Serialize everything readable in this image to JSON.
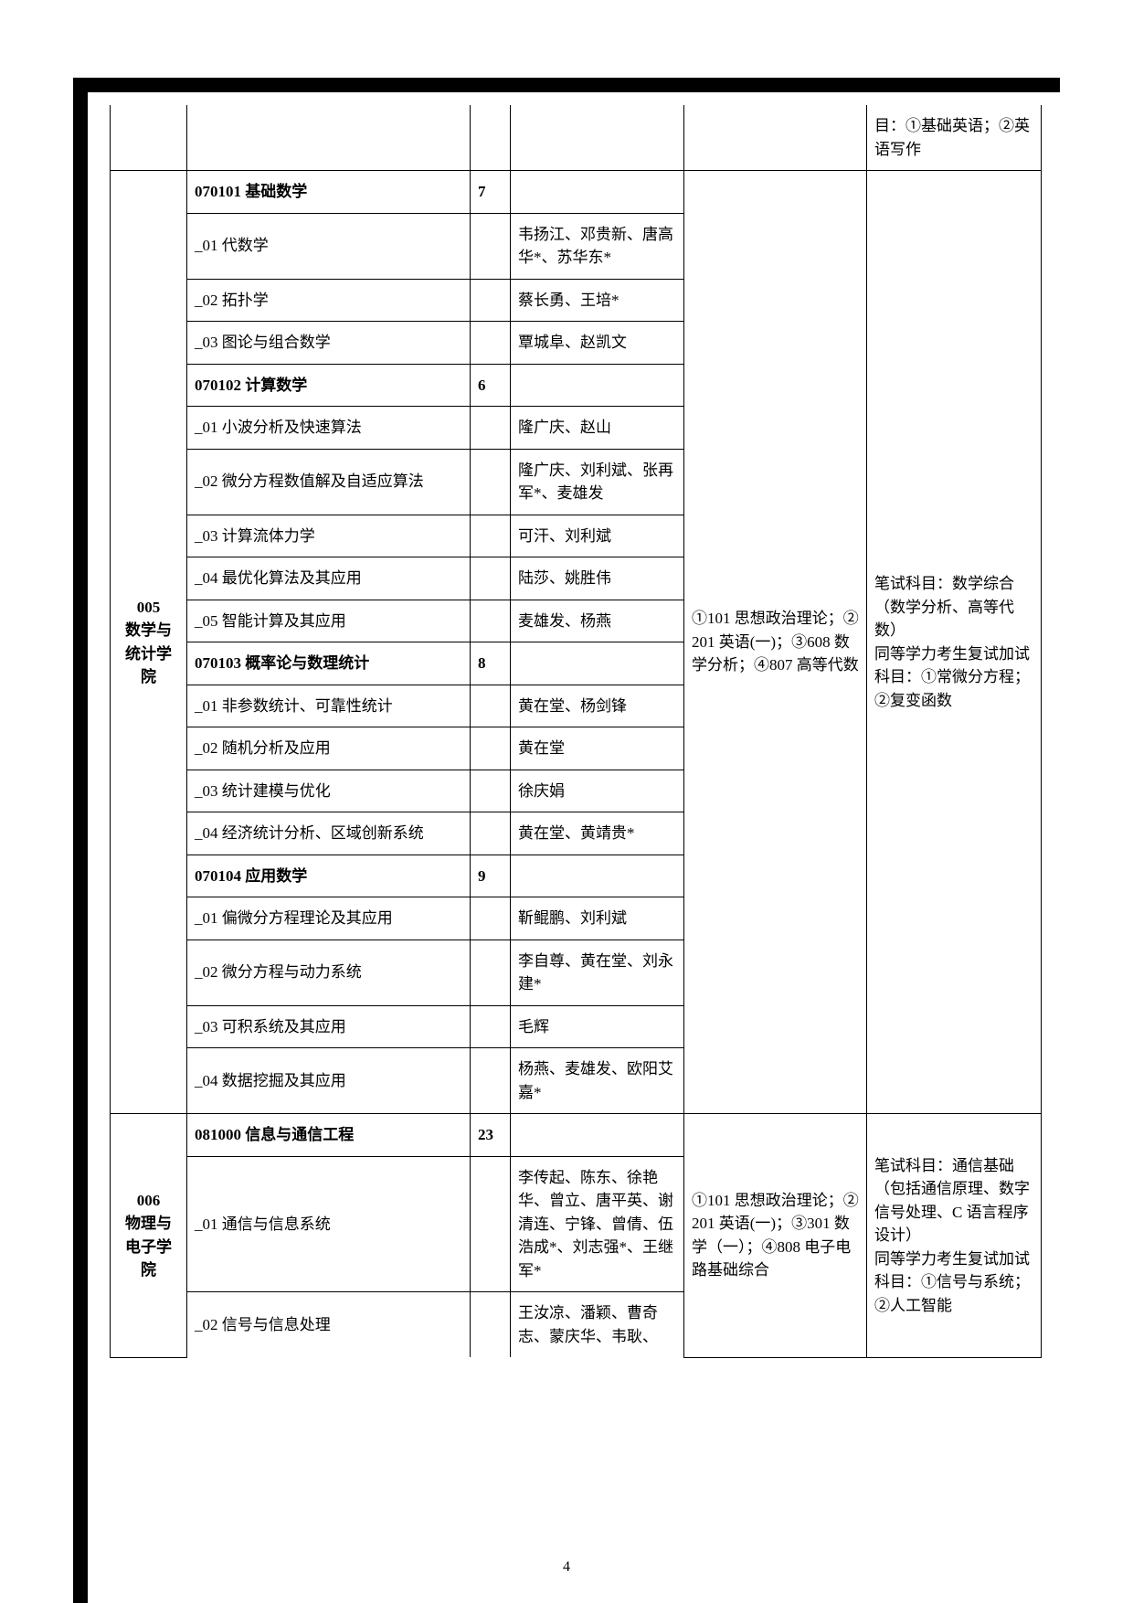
{
  "page_number": "4",
  "header_row": {
    "note": "目：①基础英语；②英语写作"
  },
  "dept_005": {
    "name": "005\n数学与统计学院",
    "exam": "①101 思想政治理论；②201 英语(一)；③608 数学分析；④807 高等代数",
    "note": "笔试科目：数学综合（数学分析、高等代数）\n同等学力考生复试加试科目：①常微分方程；②复变函数",
    "rows": [
      {
        "major": "070101 基础数学",
        "num": "7",
        "faculty": "",
        "bold": true
      },
      {
        "major": "_01 代数学",
        "num": "",
        "faculty": "韦扬江、邓贵新、唐高华*、苏华东*"
      },
      {
        "major": "_02 拓扑学",
        "num": "",
        "faculty": "蔡长勇、王培*"
      },
      {
        "major": "_03 图论与组合数学",
        "num": "",
        "faculty": "覃城阜、赵凯文"
      },
      {
        "major": "070102 计算数学",
        "num": "6",
        "faculty": "",
        "bold": true
      },
      {
        "major": "_01 小波分析及快速算法",
        "num": "",
        "faculty": "隆广庆、赵山"
      },
      {
        "major": "_02 微分方程数值解及自适应算法",
        "num": "",
        "faculty": "隆广庆、刘利斌、张再军*、麦雄发"
      },
      {
        "major": "_03  计算流体力学",
        "num": "",
        "faculty": "可汗、刘利斌"
      },
      {
        "major": "_04 最优化算法及其应用",
        "num": "",
        "faculty": "陆莎、姚胜伟"
      },
      {
        "major": "_05 智能计算及其应用",
        "num": "",
        "faculty": "麦雄发、杨燕"
      },
      {
        "major": "070103 概率论与数理统计",
        "num": "8",
        "faculty": "",
        "bold": true
      },
      {
        "major": "_01 非参数统计、可靠性统计",
        "num": "",
        "faculty": "黄在堂、杨剑锋"
      },
      {
        "major": "_02 随机分析及应用",
        "num": "",
        "faculty": "黄在堂"
      },
      {
        "major": "_03 统计建模与优化",
        "num": "",
        "faculty": "徐庆娟"
      },
      {
        "major": "_04 经济统计分析、区域创新系统",
        "num": "",
        "faculty": "黄在堂、黄靖贵*"
      },
      {
        "major": "070104 应用数学",
        "num": "9",
        "faculty": "",
        "bold": true
      },
      {
        "major": "_01 偏微分方程理论及其应用",
        "num": "",
        "faculty": "靳鲲鹏、刘利斌"
      },
      {
        "major": "_02  微分方程与动力系统",
        "num": "",
        "faculty": "李自尊、黄在堂、刘永建*"
      },
      {
        "major": "_03  可积系统及其应用",
        "num": "",
        "faculty": "毛辉"
      },
      {
        "major": "_04  数据挖掘及其应用",
        "num": "",
        "faculty": "杨燕、麦雄发、欧阳艾嘉*"
      }
    ]
  },
  "dept_006": {
    "name": "006\n物理与电子学院",
    "exam": "①101 思想政治理论；②201 英语(一)；③301 数学（一）；④808 电子电路基础综合",
    "note": "笔试科目：通信基础（包括通信原理、数字信号处理、C 语言程序设计）\n同等学力考生复试加试科目：①信号与系统；②人工智能",
    "rows": [
      {
        "major": "081000 信息与通信工程",
        "num": "23",
        "faculty": "",
        "bold": true
      },
      {
        "major": "_01 通信与信息系统",
        "num": "",
        "faculty": "李传起、陈东、徐艳华、曾立、唐平英、谢清连、宁锋、曾倩、伍浩成*、刘志强*、王继军*"
      },
      {
        "major": "_02 信号与信息处理",
        "num": "",
        "faculty": "王汝凉、潘颖、曹奇志、蒙庆华、韦耿、"
      }
    ]
  }
}
